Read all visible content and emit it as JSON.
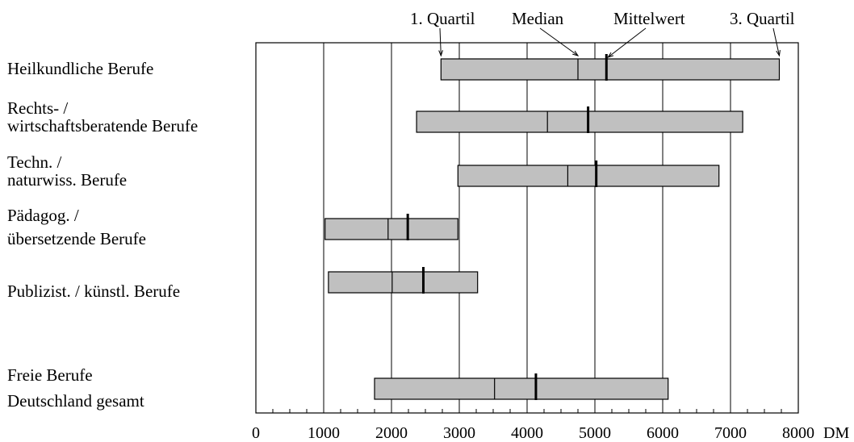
{
  "chart_data": {
    "type": "box-range",
    "unit_label": "DM",
    "xlim": [
      0,
      8000
    ],
    "x_ticks": [
      0,
      1000,
      2000,
      3000,
      4000,
      5000,
      6000,
      7000,
      8000
    ],
    "grid": "vertical",
    "header_labels": {
      "q1": "1. Quartil",
      "median": "Median",
      "mean": "Mittelwert",
      "q3": "3. Quartil"
    },
    "series": [
      {
        "label_lines": [
          "Heilkundliche Berufe"
        ],
        "q1": 2730,
        "median": 4750,
        "mean": 5170,
        "q3": 7720
      },
      {
        "label_lines": [
          "Rechts- /",
          "wirtschaftsberatende Berufe"
        ],
        "q1": 2370,
        "median": 4300,
        "mean": 4900,
        "q3": 7180
      },
      {
        "label_lines": [
          "Techn. /",
          "naturwiss. Berufe"
        ],
        "q1": 2980,
        "median": 4600,
        "mean": 5020,
        "q3": 6830
      },
      {
        "label_lines": [
          "Pädagog. /",
          "übersetzende Berufe"
        ],
        "q1": 1020,
        "median": 1950,
        "mean": 2240,
        "q3": 2980
      },
      {
        "label_lines": [
          "Publizist. / künstl. Berufe"
        ],
        "q1": 1070,
        "median": 2010,
        "mean": 2470,
        "q3": 3270
      },
      {
        "label_lines": [
          "Freie Berufe",
          "Deutschland gesamt"
        ],
        "q1": 1750,
        "median": 3520,
        "mean": 4130,
        "q3": 6080
      }
    ]
  }
}
